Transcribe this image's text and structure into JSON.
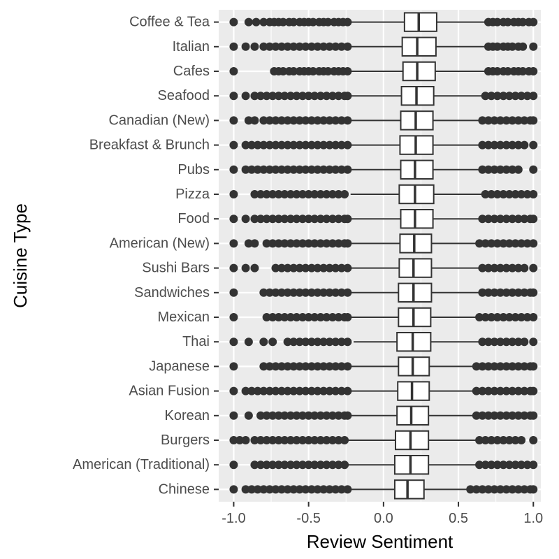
{
  "chart_data": {
    "type": "boxplot",
    "orientation": "horizontal",
    "xlabel": "Review Sentiment",
    "ylabel": "Cuisine Type",
    "xlim": [
      -1.1,
      1.05
    ],
    "xticks": [
      -1.0,
      -0.5,
      0.0,
      0.5,
      1.0
    ],
    "xtick_labels": [
      "-1.0",
      "-0.5",
      "0.0",
      "0.5",
      "1.0"
    ],
    "grid": true,
    "colors": {
      "panel_background": "#ebebeb",
      "grid": "#ffffff",
      "box_fill": "#ffffff",
      "stroke": "#333333",
      "outlier": "#333333"
    },
    "categories": [
      {
        "name": "Coffee & Tea",
        "lower_whisker": -0.22,
        "q1": 0.14,
        "median": 0.235,
        "q3": 0.355,
        "upper_whisker": 0.68,
        "outliers": [
          -1.0,
          -0.9,
          -0.85,
          -0.8,
          -0.76,
          -0.73,
          -0.7,
          -0.67,
          -0.63,
          -0.6,
          -0.56,
          -0.53,
          -0.5,
          -0.47,
          -0.43,
          -0.4,
          -0.37,
          -0.33,
          -0.3,
          -0.27,
          -0.24,
          0.7,
          0.73,
          0.76,
          0.8,
          0.83,
          0.87,
          0.9,
          0.93,
          0.97,
          1.0
        ]
      },
      {
        "name": "Italian",
        "lower_whisker": -0.22,
        "q1": 0.125,
        "median": 0.225,
        "q3": 0.35,
        "upper_whisker": 0.68,
        "outliers": [
          -1.0,
          -0.92,
          -0.86,
          -0.8,
          -0.76,
          -0.72,
          -0.68,
          -0.64,
          -0.6,
          -0.56,
          -0.52,
          -0.48,
          -0.44,
          -0.4,
          -0.36,
          -0.32,
          -0.28,
          -0.24,
          0.7,
          0.73,
          0.76,
          0.8,
          0.83,
          0.86,
          0.9,
          0.93,
          1.0
        ]
      },
      {
        "name": "Cafes",
        "lower_whisker": -0.22,
        "q1": 0.13,
        "median": 0.225,
        "q3": 0.345,
        "upper_whisker": 0.68,
        "outliers": [
          -1.0,
          -0.73,
          -0.7,
          -0.67,
          -0.63,
          -0.6,
          -0.56,
          -0.53,
          -0.5,
          -0.47,
          -0.43,
          -0.4,
          -0.37,
          -0.33,
          -0.3,
          -0.27,
          -0.24,
          0.7,
          0.73,
          0.76,
          0.8,
          0.83,
          0.87,
          0.9,
          0.93,
          0.97,
          1.0
        ]
      },
      {
        "name": "Seafood",
        "lower_whisker": -0.22,
        "q1": 0.12,
        "median": 0.22,
        "q3": 0.335,
        "upper_whisker": 0.66,
        "outliers": [
          -1.0,
          -0.92,
          -0.86,
          -0.82,
          -0.78,
          -0.74,
          -0.7,
          -0.66,
          -0.62,
          -0.58,
          -0.54,
          -0.5,
          -0.46,
          -0.42,
          -0.38,
          -0.34,
          -0.3,
          -0.26,
          -0.24,
          0.68,
          0.72,
          0.76,
          0.8,
          0.84,
          0.88,
          0.92,
          0.96,
          1.0
        ]
      },
      {
        "name": "Canadian (New)",
        "lower_whisker": -0.22,
        "q1": 0.115,
        "median": 0.215,
        "q3": 0.33,
        "upper_whisker": 0.64,
        "outliers": [
          -1.0,
          -0.9,
          -0.86,
          -0.8,
          -0.76,
          -0.72,
          -0.68,
          -0.64,
          -0.6,
          -0.56,
          -0.52,
          -0.48,
          -0.44,
          -0.4,
          -0.36,
          -0.32,
          -0.28,
          -0.24,
          0.66,
          0.7,
          0.74,
          0.78,
          0.82,
          0.86,
          0.9,
          0.94,
          0.98,
          1.0
        ]
      },
      {
        "name": "Breakfast & Brunch",
        "lower_whisker": -0.22,
        "q1": 0.11,
        "median": 0.215,
        "q3": 0.33,
        "upper_whisker": 0.64,
        "outliers": [
          -1.0,
          -0.92,
          -0.88,
          -0.84,
          -0.8,
          -0.76,
          -0.72,
          -0.68,
          -0.64,
          -0.6,
          -0.56,
          -0.52,
          -0.48,
          -0.44,
          -0.4,
          -0.36,
          -0.32,
          -0.28,
          -0.24,
          0.66,
          0.7,
          0.74,
          0.78,
          0.82,
          0.86,
          0.9,
          0.94,
          1.0
        ]
      },
      {
        "name": "Pubs",
        "lower_whisker": -0.22,
        "q1": 0.115,
        "median": 0.21,
        "q3": 0.33,
        "upper_whisker": 0.64,
        "outliers": [
          -1.0,
          -0.92,
          -0.88,
          -0.84,
          -0.8,
          -0.76,
          -0.72,
          -0.68,
          -0.64,
          -0.6,
          -0.56,
          -0.52,
          -0.48,
          -0.44,
          -0.4,
          -0.36,
          -0.32,
          -0.28,
          -0.24,
          0.66,
          0.7,
          0.74,
          0.78,
          0.82,
          0.86,
          0.9,
          1.0
        ]
      },
      {
        "name": "Pizza",
        "lower_whisker": -0.22,
        "q1": 0.105,
        "median": 0.21,
        "q3": 0.335,
        "upper_whisker": 0.66,
        "outliers": [
          -1.0,
          -0.86,
          -0.82,
          -0.78,
          -0.74,
          -0.7,
          -0.66,
          -0.62,
          -0.58,
          -0.54,
          -0.5,
          -0.46,
          -0.42,
          -0.38,
          -0.34,
          -0.3,
          -0.26,
          0.68,
          0.72,
          0.76,
          0.8,
          0.84,
          0.88,
          0.92,
          0.96,
          1.0
        ]
      },
      {
        "name": "Food",
        "lower_whisker": -0.22,
        "q1": 0.115,
        "median": 0.21,
        "q3": 0.33,
        "upper_whisker": 0.64,
        "outliers": [
          -1.0,
          -0.92,
          -0.86,
          -0.82,
          -0.78,
          -0.74,
          -0.7,
          -0.66,
          -0.62,
          -0.58,
          -0.54,
          -0.5,
          -0.46,
          -0.42,
          -0.38,
          -0.34,
          -0.3,
          -0.26,
          -0.24,
          0.66,
          0.7,
          0.74,
          0.78,
          0.82,
          0.86,
          0.9,
          0.94,
          0.98,
          1.0
        ]
      },
      {
        "name": "American (New)",
        "lower_whisker": -0.22,
        "q1": 0.11,
        "median": 0.205,
        "q3": 0.32,
        "upper_whisker": 0.62,
        "outliers": [
          -1.0,
          -0.9,
          -0.86,
          -0.78,
          -0.74,
          -0.7,
          -0.66,
          -0.62,
          -0.58,
          -0.54,
          -0.5,
          -0.46,
          -0.42,
          -0.38,
          -0.34,
          -0.3,
          -0.26,
          -0.24,
          0.64,
          0.68,
          0.72,
          0.76,
          0.8,
          0.84,
          0.88,
          0.92,
          0.96,
          1.0
        ]
      },
      {
        "name": "Sushi Bars",
        "lower_whisker": -0.22,
        "q1": 0.105,
        "median": 0.2,
        "q3": 0.32,
        "upper_whisker": 0.64,
        "outliers": [
          -1.0,
          -0.92,
          -0.86,
          -0.72,
          -0.68,
          -0.64,
          -0.6,
          -0.56,
          -0.52,
          -0.48,
          -0.44,
          -0.4,
          -0.36,
          -0.32,
          -0.28,
          -0.24,
          0.66,
          0.7,
          0.74,
          0.78,
          0.82,
          0.86,
          0.9,
          0.94,
          1.0
        ]
      },
      {
        "name": "Sandwiches",
        "lower_whisker": -0.22,
        "q1": 0.1,
        "median": 0.2,
        "q3": 0.32,
        "upper_whisker": 0.64,
        "outliers": [
          -1.0,
          -0.8,
          -0.76,
          -0.72,
          -0.68,
          -0.64,
          -0.6,
          -0.56,
          -0.52,
          -0.48,
          -0.44,
          -0.4,
          -0.36,
          -0.32,
          -0.28,
          -0.24,
          0.66,
          0.7,
          0.74,
          0.78,
          0.82,
          0.86,
          0.9,
          0.94,
          0.98,
          1.0
        ]
      },
      {
        "name": "Mexican",
        "lower_whisker": -0.22,
        "q1": 0.1,
        "median": 0.2,
        "q3": 0.315,
        "upper_whisker": 0.62,
        "outliers": [
          -1.0,
          -0.78,
          -0.74,
          -0.7,
          -0.66,
          -0.62,
          -0.58,
          -0.54,
          -0.5,
          -0.46,
          -0.42,
          -0.38,
          -0.34,
          -0.3,
          -0.26,
          -0.24,
          0.64,
          0.68,
          0.72,
          0.76,
          0.8,
          0.84,
          0.88,
          0.92,
          0.96,
          1.0
        ]
      },
      {
        "name": "Thai",
        "lower_whisker": -0.2,
        "q1": 0.09,
        "median": 0.195,
        "q3": 0.315,
        "upper_whisker": 0.64,
        "outliers": [
          -1.0,
          -0.9,
          -0.8,
          -0.74,
          -0.64,
          -0.6,
          -0.56,
          -0.52,
          -0.48,
          -0.44,
          -0.4,
          -0.36,
          -0.32,
          -0.28,
          -0.24,
          0.66,
          0.7,
          0.74,
          0.78,
          0.82,
          0.86,
          0.9,
          0.94,
          1.0
        ]
      },
      {
        "name": "Japanese",
        "lower_whisker": -0.22,
        "q1": 0.1,
        "median": 0.195,
        "q3": 0.305,
        "upper_whisker": 0.6,
        "outliers": [
          -1.0,
          -0.8,
          -0.76,
          -0.72,
          -0.68,
          -0.64,
          -0.6,
          -0.56,
          -0.52,
          -0.48,
          -0.44,
          -0.4,
          -0.36,
          -0.32,
          -0.28,
          -0.24,
          0.62,
          0.66,
          0.7,
          0.74,
          0.78,
          0.82,
          0.86,
          0.9,
          0.94,
          0.98,
          1.0
        ]
      },
      {
        "name": "Asian Fusion",
        "lower_whisker": -0.22,
        "q1": 0.095,
        "median": 0.19,
        "q3": 0.305,
        "upper_whisker": 0.6,
        "outliers": [
          -1.0,
          -0.92,
          -0.88,
          -0.84,
          -0.8,
          -0.76,
          -0.72,
          -0.68,
          -0.64,
          -0.6,
          -0.56,
          -0.52,
          -0.48,
          -0.44,
          -0.4,
          -0.36,
          -0.32,
          -0.28,
          -0.24,
          0.62,
          0.66,
          0.7,
          0.74,
          0.78,
          0.82,
          0.86,
          0.9,
          0.94,
          0.98,
          1.0
        ]
      },
      {
        "name": "Korean",
        "lower_whisker": -0.22,
        "q1": 0.09,
        "median": 0.185,
        "q3": 0.3,
        "upper_whisker": 0.6,
        "outliers": [
          -1.0,
          -0.9,
          -0.82,
          -0.78,
          -0.74,
          -0.7,
          -0.66,
          -0.62,
          -0.58,
          -0.54,
          -0.5,
          -0.46,
          -0.42,
          -0.38,
          -0.34,
          -0.3,
          -0.26,
          -0.24,
          0.62,
          0.66,
          0.7,
          0.74,
          0.78,
          0.82,
          0.86,
          0.9,
          0.94,
          0.98,
          1.0
        ]
      },
      {
        "name": "Burgers",
        "lower_whisker": -0.24,
        "q1": 0.08,
        "median": 0.18,
        "q3": 0.3,
        "upper_whisker": 0.62,
        "outliers": [
          -1.0,
          -0.96,
          -0.92,
          -0.86,
          -0.82,
          -0.78,
          -0.74,
          -0.7,
          -0.66,
          -0.62,
          -0.58,
          -0.54,
          -0.5,
          -0.46,
          -0.42,
          -0.38,
          -0.34,
          -0.3,
          -0.26,
          0.64,
          0.68,
          0.72,
          0.76,
          0.8,
          0.84,
          0.88,
          0.92,
          1.0
        ]
      },
      {
        "name": "American (Traditional)",
        "lower_whisker": -0.24,
        "q1": 0.075,
        "median": 0.18,
        "q3": 0.3,
        "upper_whisker": 0.62,
        "outliers": [
          -1.0,
          -0.86,
          -0.82,
          -0.78,
          -0.74,
          -0.7,
          -0.66,
          -0.62,
          -0.58,
          -0.54,
          -0.5,
          -0.46,
          -0.42,
          -0.38,
          -0.34,
          -0.3,
          -0.26,
          0.64,
          0.68,
          0.72,
          0.76,
          0.8,
          0.84,
          0.88,
          0.92,
          0.96,
          1.0
        ]
      },
      {
        "name": "Chinese",
        "lower_whisker": -0.22,
        "q1": 0.075,
        "median": 0.16,
        "q3": 0.27,
        "upper_whisker": 0.56,
        "outliers": [
          -1.0,
          -0.92,
          -0.88,
          -0.84,
          -0.8,
          -0.76,
          -0.72,
          -0.68,
          -0.64,
          -0.6,
          -0.56,
          -0.52,
          -0.48,
          -0.44,
          -0.4,
          -0.36,
          -0.32,
          -0.28,
          -0.24,
          0.58,
          0.62,
          0.66,
          0.7,
          0.74,
          0.78,
          0.82,
          0.86,
          0.9,
          0.94,
          0.98,
          1.0
        ]
      }
    ]
  }
}
